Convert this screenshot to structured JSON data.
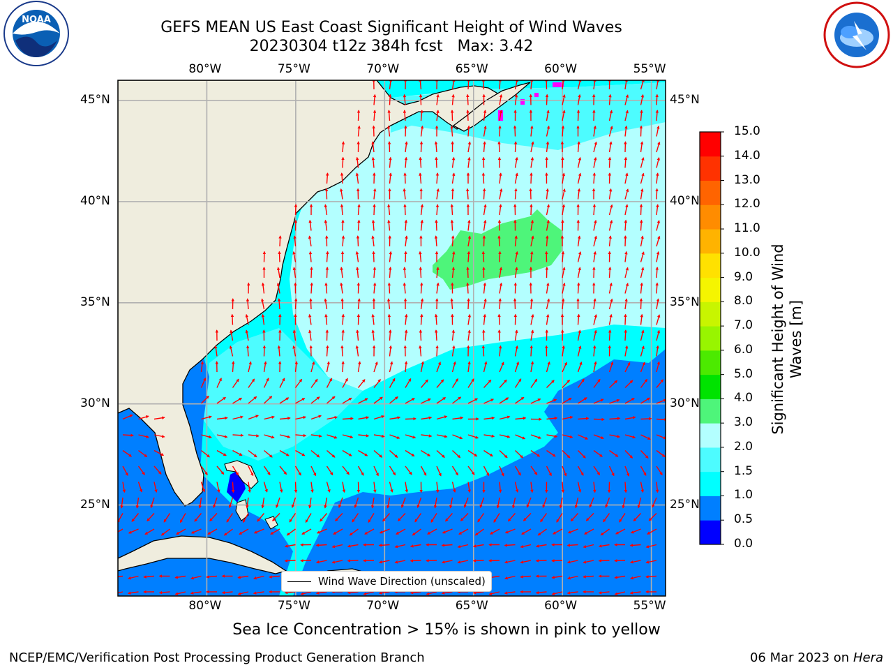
{
  "title": {
    "line1": "GEFS MEAN US East Coast Significant Height of Wind Waves",
    "line2": "20230304 t12z 384h fcst   Max: 3.42"
  },
  "map": {
    "lon_range": [
      -85,
      -54.2
    ],
    "lat_range": [
      20.5,
      46.0
    ],
    "lon_ticks": [
      "80°W",
      "75°W",
      "70°W",
      "65°W",
      "60°W",
      "55°W"
    ],
    "lat_ticks": [
      "45°N",
      "40°N",
      "35°N",
      "30°N",
      "25°N"
    ],
    "land_color": "#efedde",
    "grid_color": "#b0b0b0",
    "arrow_color": "#ff0000"
  },
  "colorbar": {
    "label": "Significant Height of Wind Waves [m]",
    "label_line1": "Significant Height of Wind",
    "label_line2": "Waves [m]",
    "ticks": [
      "15.0",
      "14.0",
      "13.0",
      "12.0",
      "11.0",
      "10.0",
      "9.0",
      "8.0",
      "7.0",
      "6.0",
      "5.0",
      "4.0",
      "3.0",
      "2.0",
      "1.5",
      "1.0",
      "0.5",
      "0.0"
    ],
    "colors_bottom_to_top": [
      "#0000ff",
      "#007fff",
      "#00ffff",
      "#4dfcff",
      "#b3ffff",
      "#4ef57a",
      "#00e300",
      "#4cea00",
      "#98f500",
      "#c8f500",
      "#f5f500",
      "#ffe100",
      "#ffb300",
      "#ff8c00",
      "#ff6400",
      "#ff3200",
      "#ff0000"
    ]
  },
  "legend": {
    "label": "Wind Wave Direction (unscaled)"
  },
  "sea_ice_note": "Sea Ice Concentration > 15% is shown in pink to yellow",
  "footer": {
    "left": "NCEP/EMC/Verification Post Processing Product Generation Branch",
    "right_date": "06 Mar 2023 on",
    "right_machine": "Hera"
  },
  "logos": {
    "left": "noaa-logo",
    "right": "nws-logo"
  }
}
